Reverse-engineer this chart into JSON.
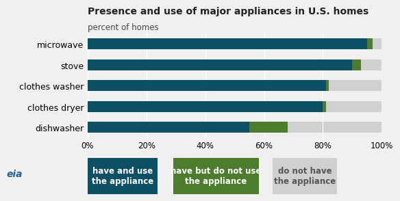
{
  "title": "Presence and use of major appliances in U.S. homes",
  "subtitle": "percent of homes",
  "categories": [
    "dishwasher",
    "clothes dryer",
    "clothes washer",
    "stove",
    "microwave"
  ],
  "have_and_use": [
    55,
    80,
    81,
    90,
    95
  ],
  "have_not_use": [
    13,
    1,
    1,
    3,
    2
  ],
  "color_use": "#0d4f63",
  "color_have_not_use": "#4e7c2e",
  "color_dont_have": "#d0d0d0",
  "xtick_labels": [
    "0%",
    "20%",
    "40%",
    "60%",
    "80%",
    "100%"
  ],
  "xtick_vals": [
    0,
    20,
    40,
    60,
    80,
    100
  ],
  "legend_labels": [
    "have and use\nthe appliance",
    "have but do not use\nthe appliance",
    "do not have\nthe appliance"
  ],
  "legend_colors": [
    "#0d4f63",
    "#4e7c2e",
    "#d0d0d0"
  ],
  "legend_text_colors": [
    "white",
    "white",
    "#555555"
  ],
  "title_fontsize": 10,
  "subtitle_fontsize": 8.5,
  "label_fontsize": 9,
  "tick_fontsize": 8.5,
  "bar_height": 0.52,
  "background_color": "#f0f0f0"
}
